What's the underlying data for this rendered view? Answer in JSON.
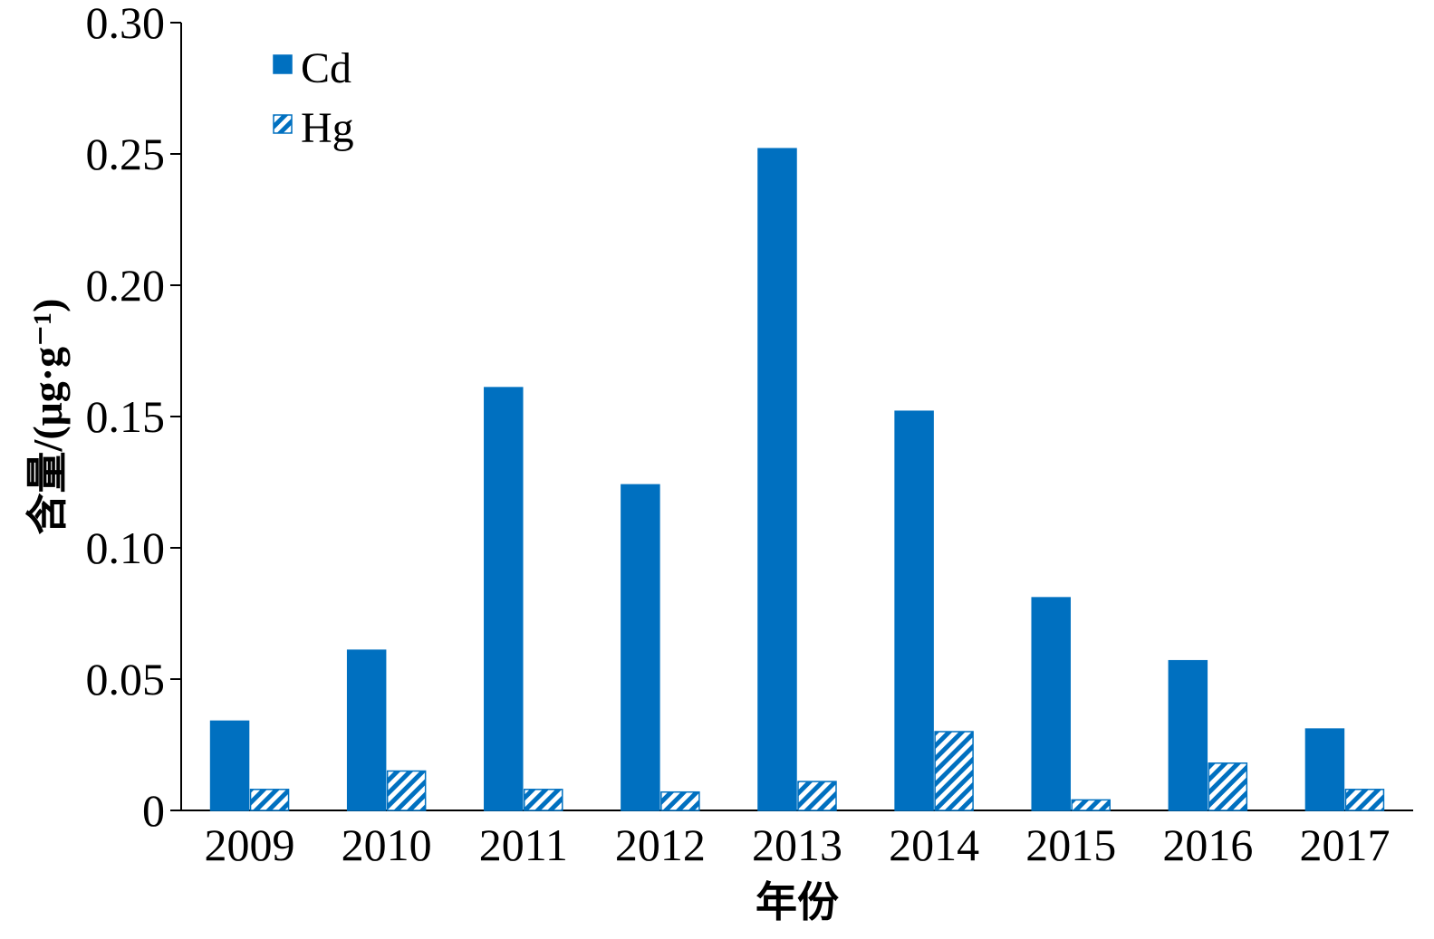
{
  "chart_data": {
    "type": "bar",
    "title": "",
    "xlabel": "年份",
    "ylabel": "含量/(μg·g⁻¹)",
    "categories": [
      "2009",
      "2010",
      "2011",
      "2012",
      "2013",
      "2014",
      "2015",
      "2016",
      "2017"
    ],
    "series": [
      {
        "name": "Cd",
        "values": [
          0.034,
          0.061,
          0.161,
          0.124,
          0.252,
          0.152,
          0.081,
          0.057,
          0.031
        ],
        "fill": "solid",
        "color": "#0070c0"
      },
      {
        "name": "Hg",
        "values": [
          0.008,
          0.015,
          0.008,
          0.007,
          0.011,
          0.03,
          0.004,
          0.018,
          0.008
        ],
        "fill": "diagonal-hatch",
        "color": "#0070c0"
      }
    ],
    "ylim": [
      0,
      0.3
    ],
    "yticks": [
      "0",
      "0.05",
      "0.10",
      "0.15",
      "0.20",
      "0.25",
      "0.30"
    ],
    "ytick_values": [
      0,
      0.05,
      0.1,
      0.15,
      0.2,
      0.25,
      0.3
    ],
    "grid": false,
    "legend_position": "top-left"
  }
}
